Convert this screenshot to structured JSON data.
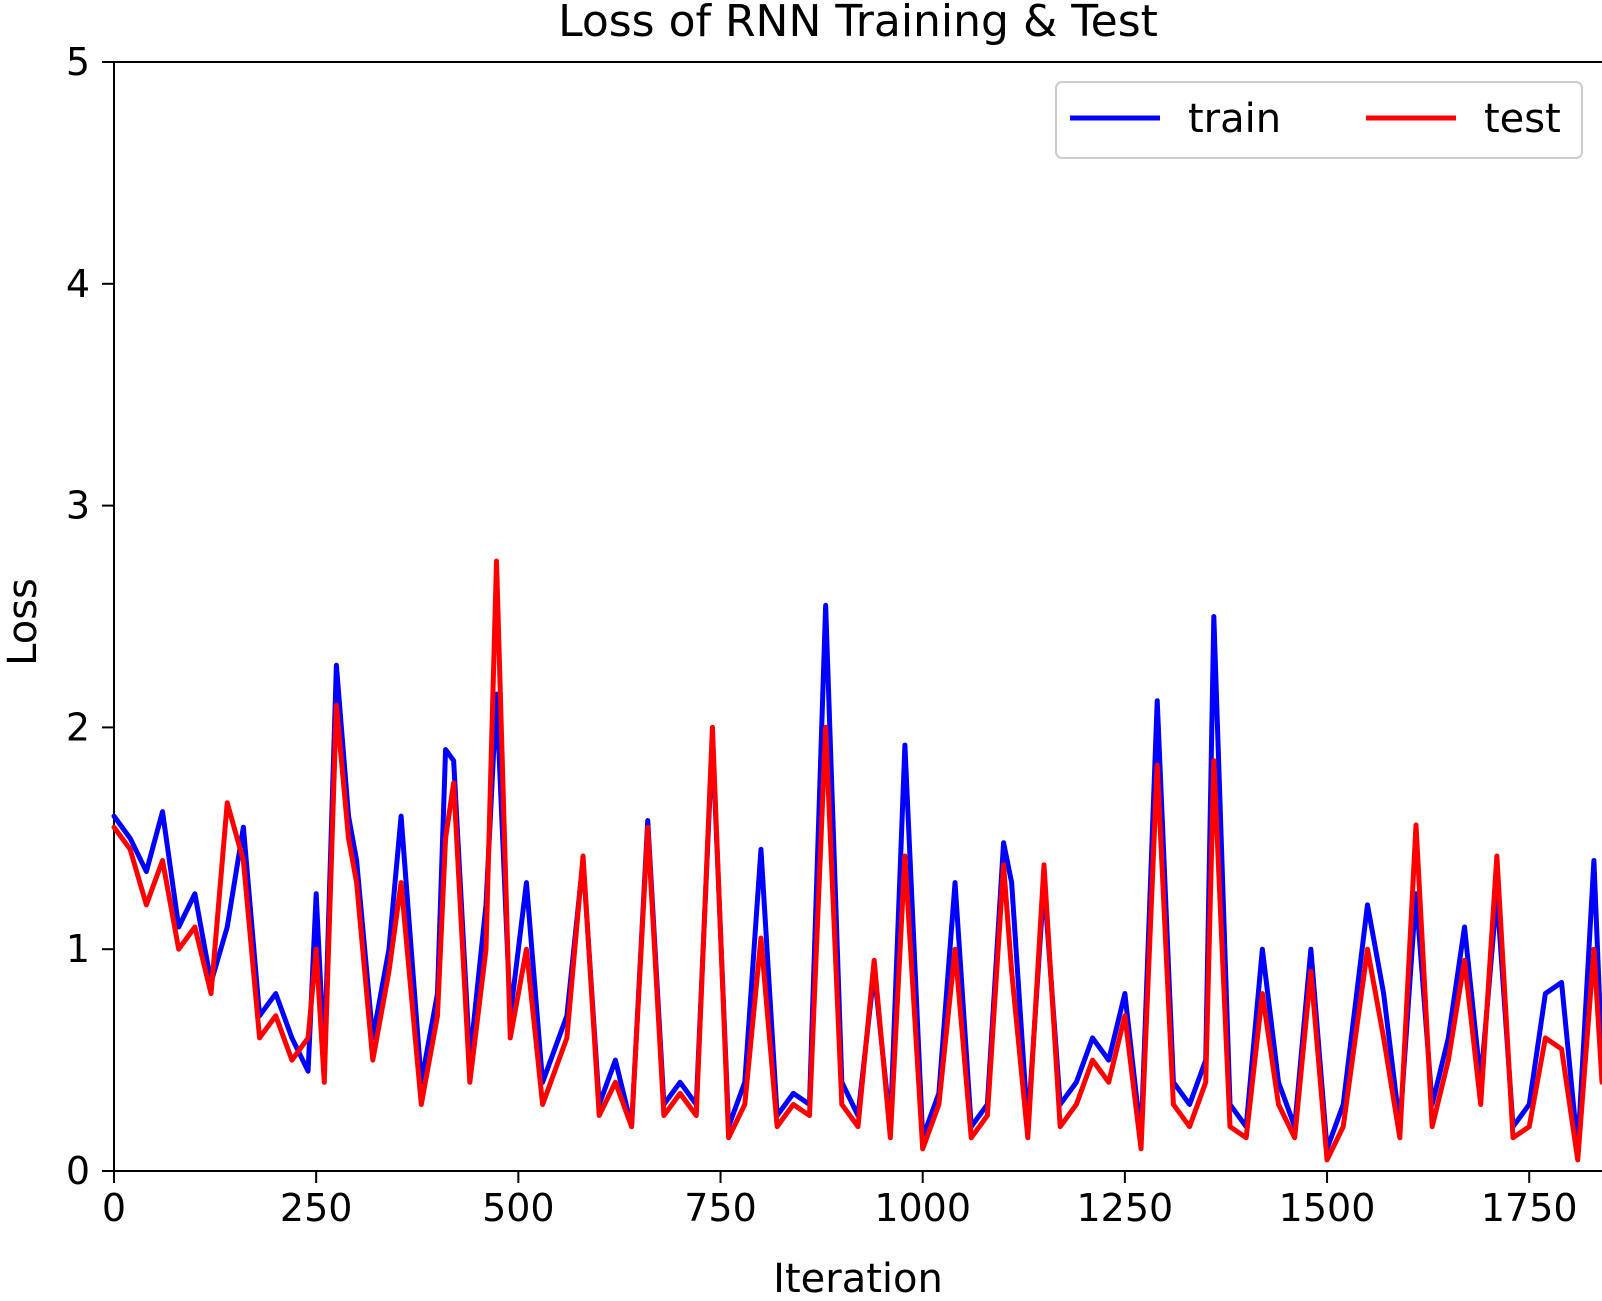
{
  "chart_data": {
    "type": "line",
    "title": "Loss of RNN Training & Test",
    "xlabel": "Iteration",
    "ylabel": "Loss",
    "xlim": [
      0,
      1840
    ],
    "ylim": [
      0,
      5
    ],
    "xticks": [
      0,
      250,
      500,
      750,
      1000,
      1250,
      1500,
      1750
    ],
    "yticks": [
      0,
      1,
      2,
      3,
      4,
      5
    ],
    "grid": false,
    "legend": {
      "position": "top-right",
      "columns": 2
    },
    "series": [
      {
        "name": "train",
        "color": "#0000ff",
        "x": [
          0,
          20,
          40,
          60,
          80,
          100,
          120,
          140,
          160,
          180,
          200,
          220,
          240,
          250,
          260,
          275,
          290,
          300,
          320,
          340,
          355,
          380,
          400,
          410,
          420,
          440,
          460,
          473,
          490,
          510,
          530,
          560,
          580,
          600,
          620,
          640,
          660,
          680,
          700,
          720,
          740,
          760,
          780,
          800,
          820,
          840,
          860,
          880,
          900,
          920,
          940,
          960,
          978,
          1000,
          1020,
          1040,
          1060,
          1080,
          1100,
          1110,
          1130,
          1150,
          1170,
          1190,
          1210,
          1230,
          1250,
          1270,
          1290,
          1310,
          1330,
          1350,
          1360,
          1380,
          1400,
          1420,
          1440,
          1460,
          1480,
          1500,
          1520,
          1550,
          1570,
          1590,
          1610,
          1630,
          1650,
          1670,
          1690,
          1710,
          1730,
          1750,
          1770,
          1790,
          1810,
          1830,
          1840
        ],
        "y": [
          1.6,
          1.5,
          1.35,
          1.62,
          1.1,
          1.25,
          0.85,
          1.1,
          1.55,
          0.7,
          0.8,
          0.6,
          0.45,
          1.25,
          0.5,
          2.28,
          1.6,
          1.4,
          0.6,
          1.0,
          1.6,
          0.4,
          0.8,
          1.9,
          1.85,
          0.5,
          1.2,
          2.15,
          0.7,
          1.3,
          0.4,
          0.7,
          1.4,
          0.3,
          0.5,
          0.2,
          1.58,
          0.3,
          0.4,
          0.3,
          1.95,
          0.2,
          0.4,
          1.45,
          0.25,
          0.35,
          0.3,
          2.55,
          0.4,
          0.25,
          0.9,
          0.2,
          1.92,
          0.15,
          0.35,
          1.3,
          0.2,
          0.3,
          1.48,
          1.3,
          0.2,
          1.3,
          0.3,
          0.4,
          0.6,
          0.5,
          0.8,
          0.15,
          2.12,
          0.4,
          0.3,
          0.5,
          2.5,
          0.3,
          0.2,
          1.0,
          0.4,
          0.2,
          1.0,
          0.1,
          0.3,
          1.2,
          0.8,
          0.2,
          1.25,
          0.3,
          0.6,
          1.1,
          0.4,
          1.25,
          0.2,
          0.3,
          0.8,
          0.85,
          0.1,
          1.4,
          0.5
        ]
      },
      {
        "name": "test",
        "color": "#ff0000",
        "x": [
          0,
          20,
          40,
          60,
          80,
          100,
          120,
          140,
          160,
          180,
          200,
          220,
          240,
          250,
          260,
          275,
          290,
          300,
          320,
          340,
          355,
          380,
          400,
          410,
          420,
          440,
          460,
          473,
          490,
          510,
          530,
          560,
          580,
          600,
          620,
          640,
          660,
          680,
          700,
          720,
          740,
          760,
          780,
          800,
          820,
          840,
          860,
          880,
          900,
          920,
          940,
          960,
          978,
          1000,
          1020,
          1040,
          1060,
          1080,
          1100,
          1110,
          1130,
          1150,
          1170,
          1190,
          1210,
          1230,
          1250,
          1270,
          1290,
          1310,
          1330,
          1350,
          1360,
          1380,
          1400,
          1420,
          1440,
          1460,
          1480,
          1500,
          1520,
          1550,
          1570,
          1590,
          1610,
          1630,
          1650,
          1670,
          1690,
          1710,
          1730,
          1750,
          1770,
          1790,
          1810,
          1830,
          1840
        ],
        "y": [
          1.55,
          1.45,
          1.2,
          1.4,
          1.0,
          1.1,
          0.8,
          1.66,
          1.4,
          0.6,
          0.7,
          0.5,
          0.6,
          1.0,
          0.4,
          2.1,
          1.5,
          1.3,
          0.5,
          0.9,
          1.3,
          0.3,
          0.7,
          1.5,
          1.75,
          0.4,
          1.0,
          2.75,
          0.6,
          1.0,
          0.3,
          0.6,
          1.42,
          0.25,
          0.4,
          0.2,
          1.55,
          0.25,
          0.35,
          0.25,
          2.0,
          0.15,
          0.3,
          1.05,
          0.2,
          0.3,
          0.25,
          2.0,
          0.3,
          0.2,
          0.95,
          0.15,
          1.42,
          0.1,
          0.3,
          1.0,
          0.15,
          0.25,
          1.38,
          0.9,
          0.15,
          1.38,
          0.2,
          0.3,
          0.5,
          0.4,
          0.7,
          0.1,
          1.83,
          0.3,
          0.2,
          0.4,
          1.85,
          0.2,
          0.15,
          0.8,
          0.3,
          0.15,
          0.9,
          0.05,
          0.2,
          1.0,
          0.6,
          0.15,
          1.56,
          0.2,
          0.5,
          0.95,
          0.3,
          1.42,
          0.15,
          0.2,
          0.6,
          0.55,
          0.05,
          1.0,
          0.4
        ]
      }
    ]
  }
}
